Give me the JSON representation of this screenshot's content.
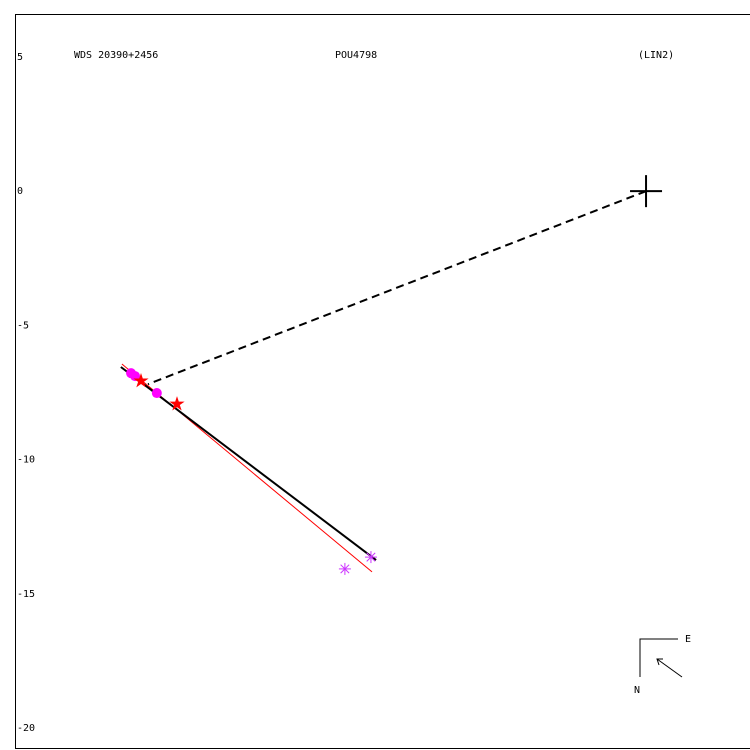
{
  "chart_data": {
    "type": "scatter",
    "title": "WDS 20390+2456",
    "subtitle": "POU4798",
    "note": "(LIN2)",
    "compass": {
      "east": "E",
      "north": "N"
    },
    "xlim": [
      -23.49,
      3.87
    ],
    "ylim": [
      -20.74,
      6.56
    ],
    "yticks": [
      5,
      0,
      -5,
      -10,
      -15,
      -20
    ],
    "series": [
      {
        "mode": "line",
        "dash": false,
        "color": "#ff0000",
        "width": 1,
        "x": [
          -19.51,
          -10.2
        ],
        "y": [
          -6.44,
          -14.18
        ]
      },
      {
        "mode": "line",
        "dash": false,
        "color": "#000000",
        "width": 2,
        "x": [
          -19.55,
          -10.05
        ],
        "y": [
          -6.55,
          -13.74
        ]
      },
      {
        "mode": "line",
        "dash": true,
        "color": "#000000",
        "width": 2,
        "x": [
          0,
          -18.54
        ],
        "y": [
          0,
          -7.19
        ]
      },
      {
        "mode": "markers",
        "marker": "cross",
        "color": "#000000",
        "x": [
          0
        ],
        "y": [
          0
        ]
      },
      {
        "mode": "markers",
        "marker": "circle",
        "color": "#ff00ff",
        "x": [
          -19.17,
          -19.02,
          -18.21
        ],
        "y": [
          -6.78,
          -6.89,
          -7.52
        ]
      },
      {
        "mode": "markers",
        "marker": "star",
        "color": "#ff0000",
        "x": [
          -18.8,
          -17.46
        ],
        "y": [
          -7.07,
          -7.93
        ]
      },
      {
        "mode": "markers",
        "marker": "asterisk",
        "color": "#cc33ff",
        "x": [
          -11.21,
          -10.24
        ],
        "y": [
          -14.07,
          -13.63
        ]
      }
    ]
  }
}
